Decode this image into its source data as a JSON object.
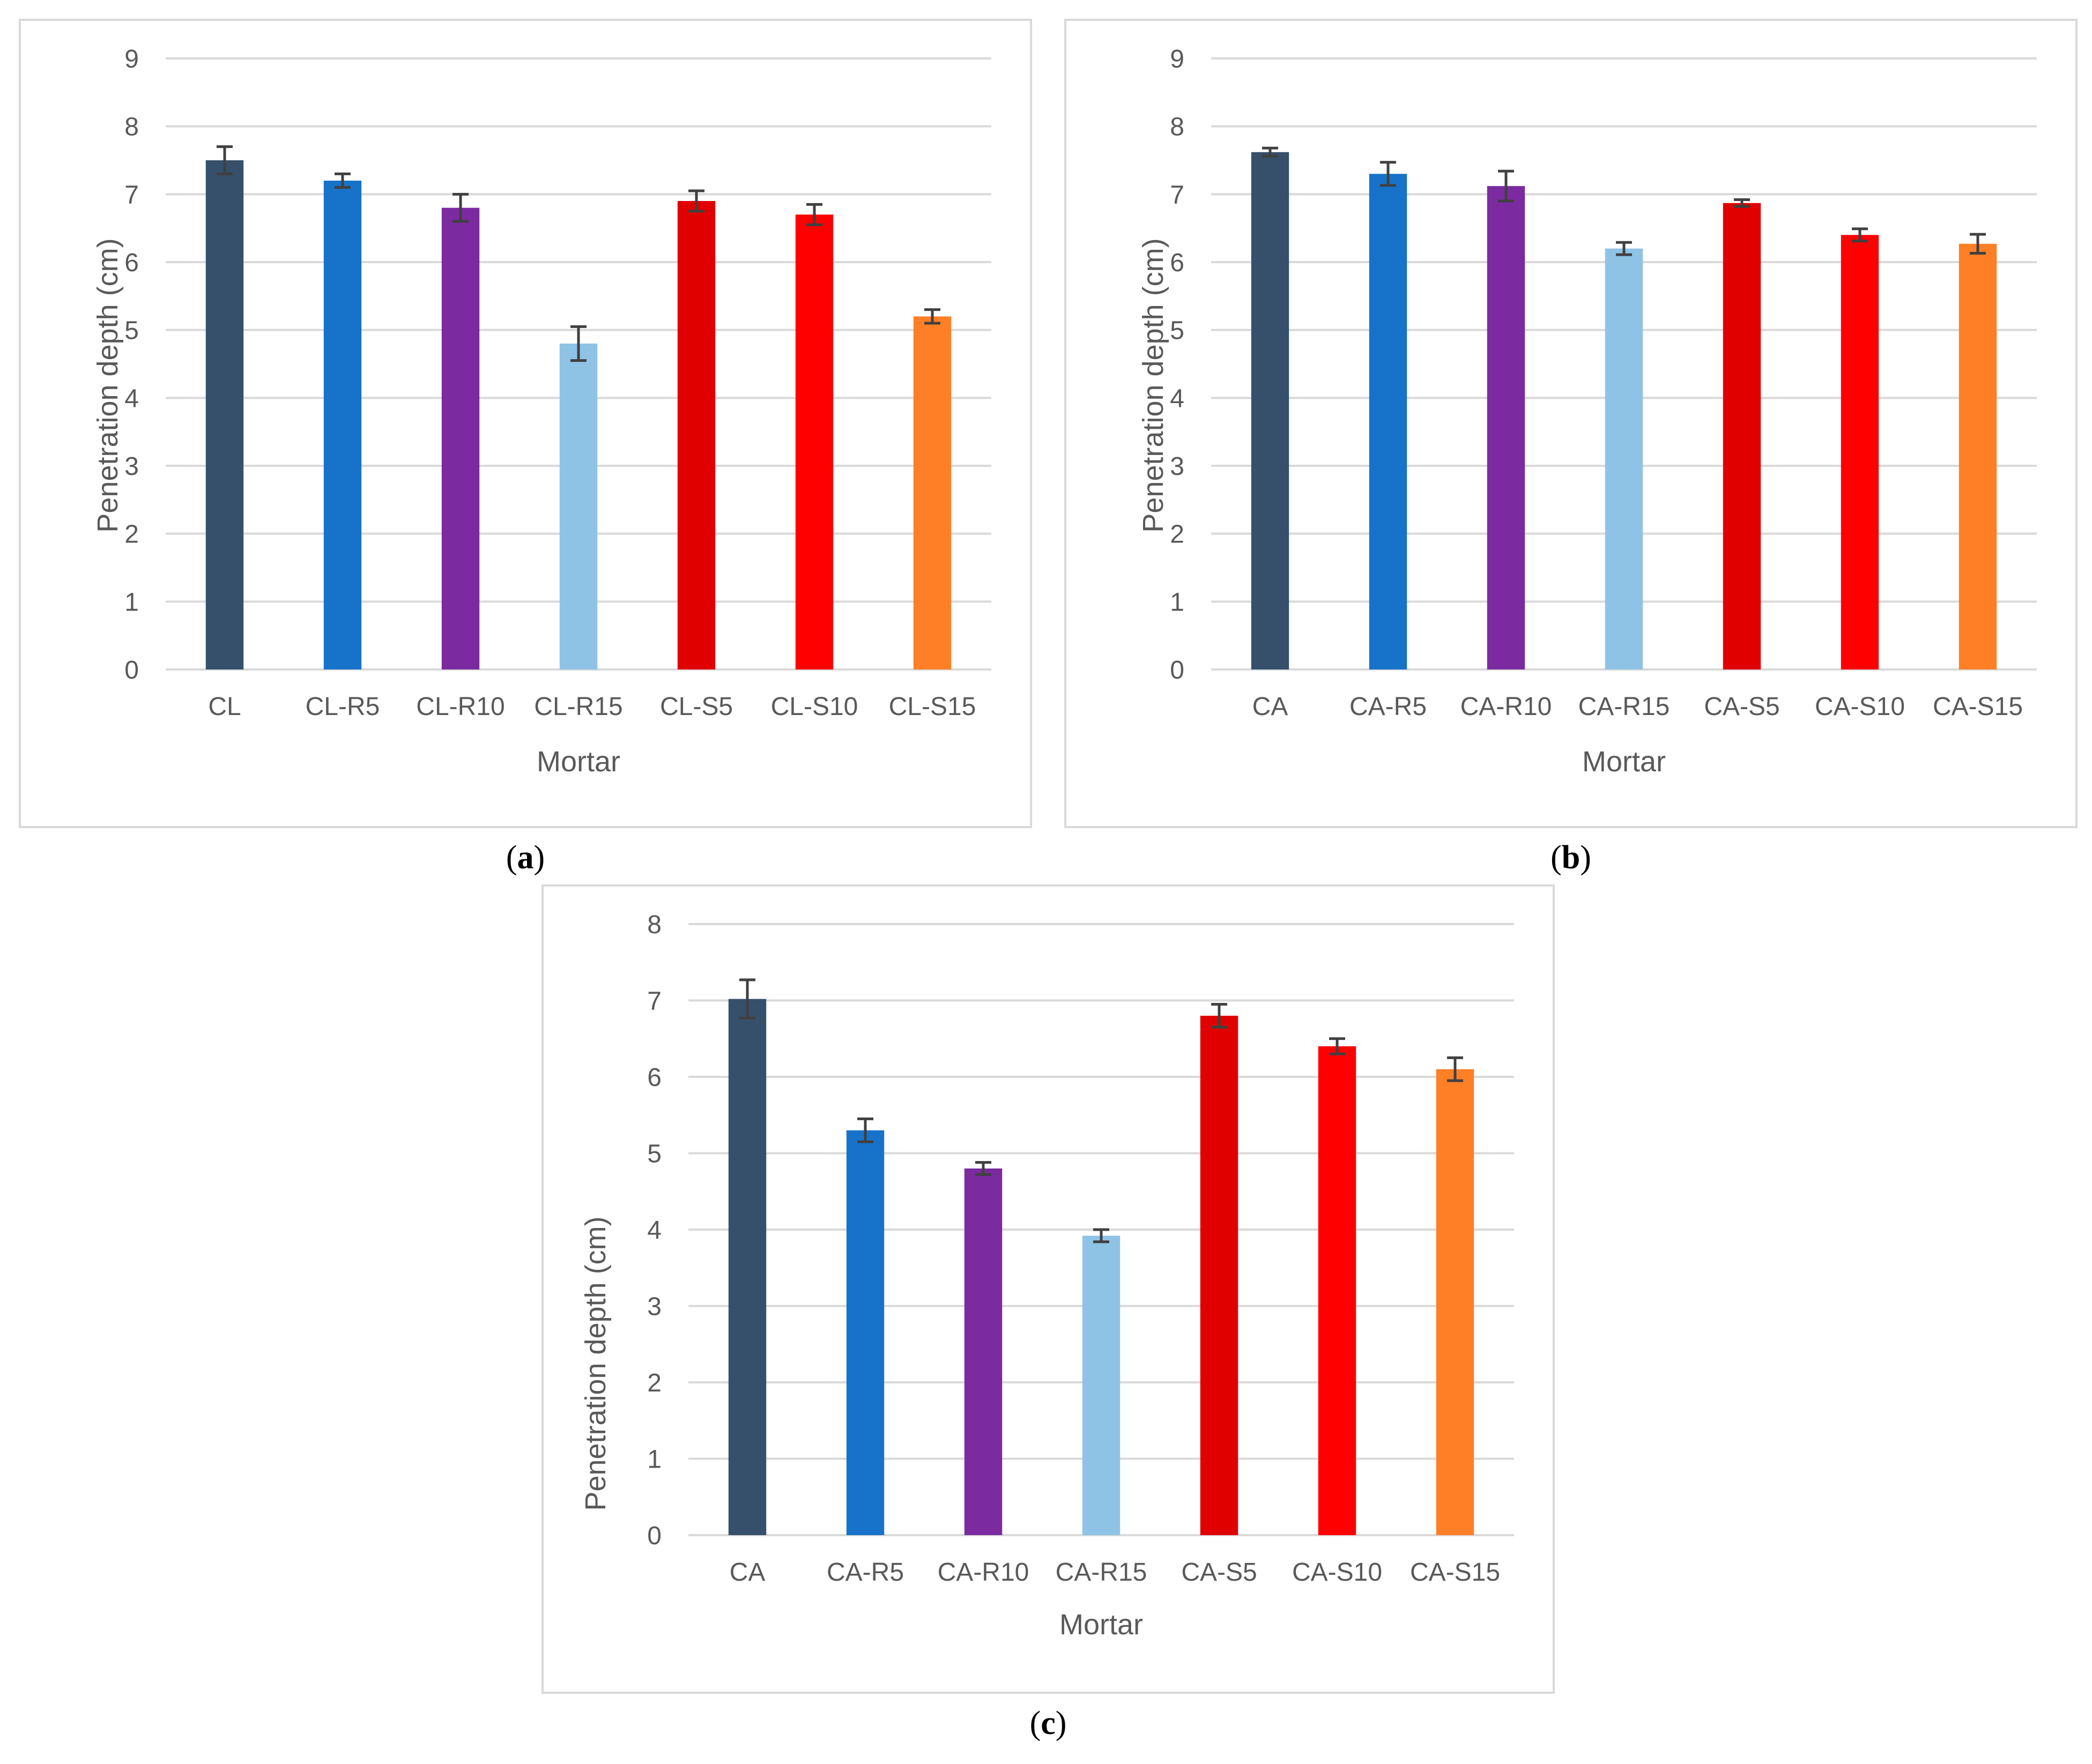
{
  "figures": [
    {
      "id": "a",
      "caption_letter": "a"
    },
    {
      "id": "b",
      "caption_letter": "b"
    },
    {
      "id": "c",
      "caption_letter": "c"
    }
  ],
  "chart_data": [
    {
      "id": "a",
      "type": "bar",
      "title": "",
      "xlabel": "Mortar",
      "ylabel": "Penetration depth (cm)",
      "ylim": [
        0,
        9
      ],
      "yticks": [
        "0",
        "1",
        "2",
        "3",
        "4",
        "5",
        "6",
        "7",
        "8",
        "9"
      ],
      "grid": true,
      "categories": [
        "CL",
        "CL-R5",
        "CL-R10",
        "CL-R15",
        "CL-S5",
        "CL-S10",
        "CL-S15"
      ],
      "values": [
        7.5,
        7.2,
        6.8,
        4.8,
        6.9,
        6.7,
        5.2
      ],
      "errors": [
        0.2,
        0.1,
        0.2,
        0.25,
        0.15,
        0.15,
        0.1
      ],
      "colors": [
        "#36506b",
        "#1773c9",
        "#7b2aa0",
        "#8ec3e6",
        "#e00000",
        "#ff0000",
        "#ff7f27"
      ]
    },
    {
      "id": "b",
      "type": "bar",
      "title": "",
      "xlabel": "Mortar",
      "ylabel": "Penetration depth (cm)",
      "ylim": [
        0,
        9
      ],
      "yticks": [
        "0",
        "1",
        "2",
        "3",
        "4",
        "5",
        "6",
        "7",
        "8",
        "9"
      ],
      "grid": true,
      "categories": [
        "CA",
        "CA-R5",
        "CA-R10",
        "CA-R15",
        "CA-S5",
        "CA-S10",
        "CA-S15"
      ],
      "values": [
        7.62,
        7.3,
        7.12,
        6.2,
        6.87,
        6.4,
        6.27
      ],
      "errors": [
        0.06,
        0.17,
        0.22,
        0.09,
        0.05,
        0.09,
        0.14
      ],
      "colors": [
        "#36506b",
        "#1773c9",
        "#7b2aa0",
        "#8ec3e6",
        "#e00000",
        "#ff0000",
        "#ff7f27"
      ]
    },
    {
      "id": "c",
      "type": "bar",
      "title": "",
      "xlabel": "Mortar",
      "ylabel": "Penetration depth (cm)",
      "ylim": [
        0,
        8
      ],
      "yticks": [
        "0",
        "1",
        "2",
        "3",
        "4",
        "5",
        "6",
        "7",
        "8"
      ],
      "grid": true,
      "categories": [
        "CA",
        "CA-R5",
        "CA-R10",
        "CA-R15",
        "CA-S5",
        "CA-S10",
        "CA-S15"
      ],
      "values": [
        7.02,
        5.3,
        4.8,
        3.92,
        6.8,
        6.4,
        6.1
      ],
      "errors": [
        0.25,
        0.15,
        0.08,
        0.08,
        0.15,
        0.1,
        0.15
      ],
      "colors": [
        "#36506b",
        "#1773c9",
        "#7b2aa0",
        "#8ec3e6",
        "#e00000",
        "#ff0000",
        "#ff7f27"
      ]
    }
  ]
}
